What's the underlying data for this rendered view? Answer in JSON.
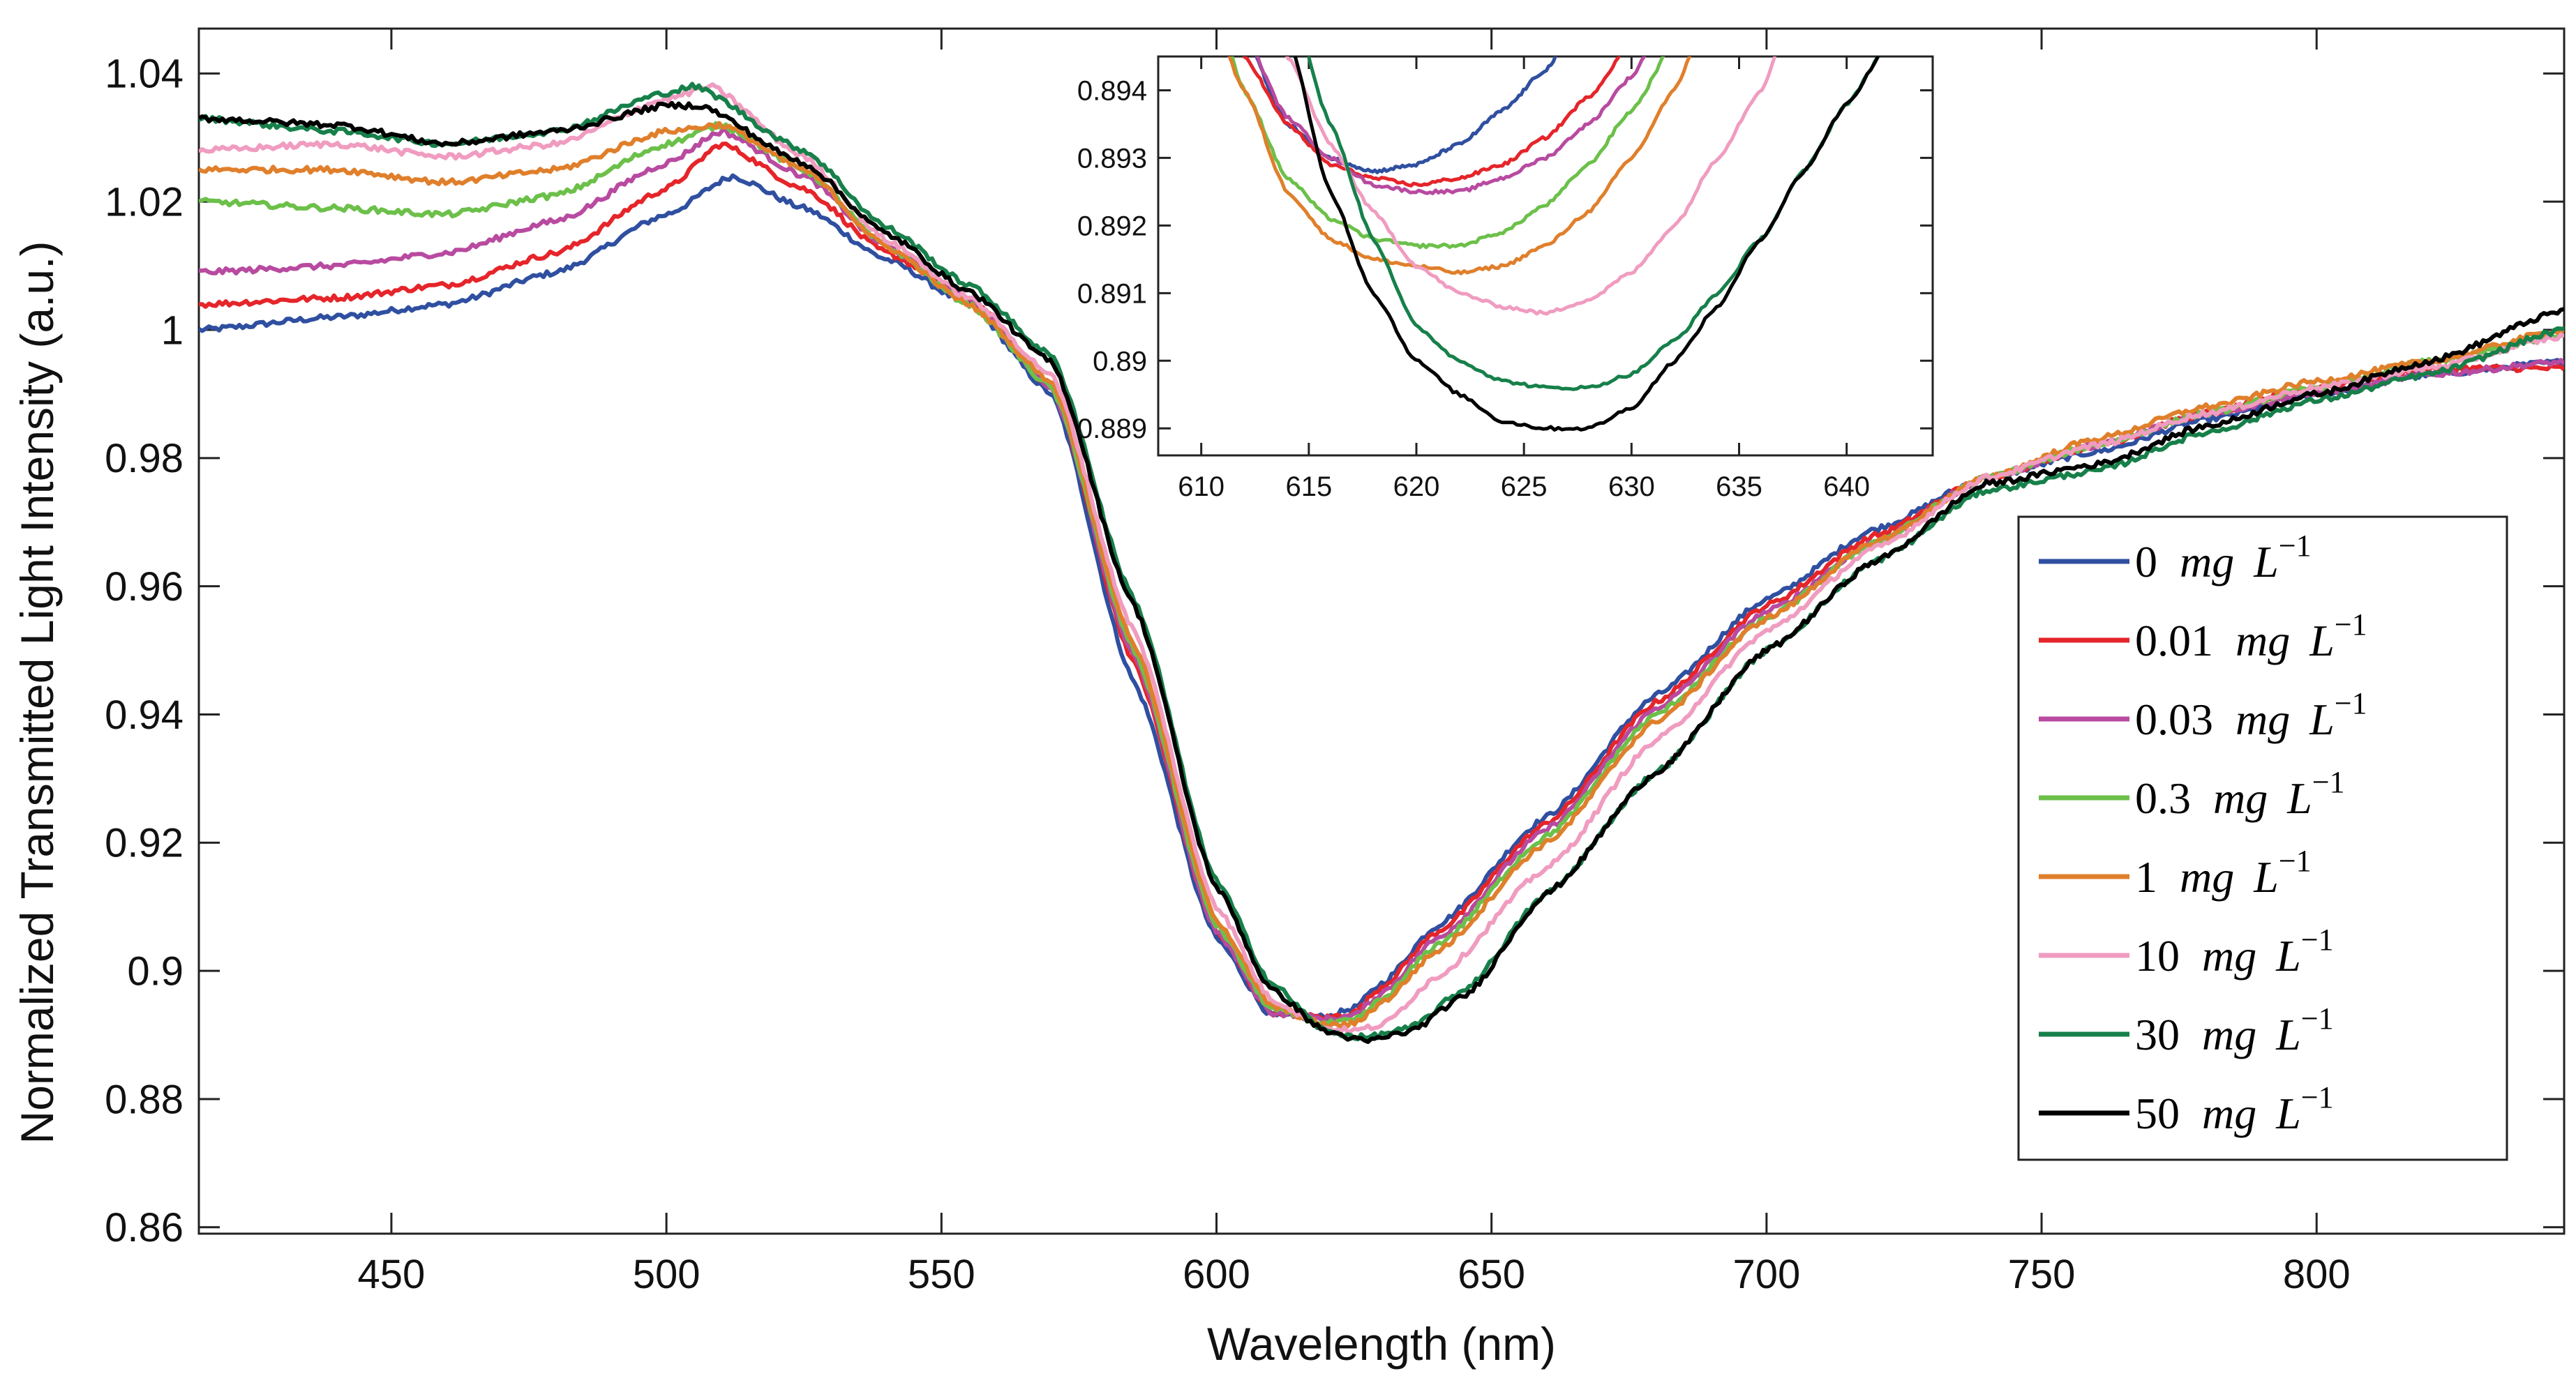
{
  "chart_data": {
    "type": "line",
    "xlabel": "Wavelength (nm)",
    "ylabel": "Normalized Transmitted Light Intensity (a.u.)",
    "xlim": [
      415,
      845
    ],
    "ylim": [
      0.859,
      1.047
    ],
    "xticks": [
      450,
      500,
      550,
      600,
      650,
      700,
      750,
      800
    ],
    "yticks": [
      0.86,
      0.88,
      0.9,
      0.92,
      0.94,
      0.96,
      0.98,
      1.0,
      1.02,
      1.04
    ],
    "ytick_labels": [
      "0.86",
      "0.88",
      "0.9",
      "0.92",
      "0.94",
      "0.96",
      "0.98",
      "1",
      "1.02",
      "1.04"
    ],
    "xtick_labels": [
      "450",
      "500",
      "550",
      "600",
      "650",
      "700",
      "750",
      "800"
    ],
    "grid": false,
    "legend_position": "right-center",
    "series": [
      {
        "name": "0",
        "unit": "mg",
        "exponent_label": "L",
        "exponent": "−1",
        "color": "#2f4fa0",
        "x": [
          415,
          440,
          460,
          480,
          500,
          512,
          525,
          540,
          555,
          570,
          585,
          600,
          610,
          620,
          625,
          630,
          640,
          660,
          680,
          700,
          720,
          740,
          760,
          780,
          800,
          820,
          845
        ],
        "y": [
          1.0,
          1.002,
          1.004,
          1.009,
          1.018,
          1.024,
          1.019,
          1.011,
          1.004,
          0.99,
          0.945,
          0.905,
          0.893,
          0.8928,
          0.8942,
          0.898,
          0.907,
          0.924,
          0.943,
          0.958,
          0.969,
          0.977,
          0.981,
          0.986,
          0.99,
          0.993,
          0.995
        ]
      },
      {
        "name": "0.01",
        "unit": "mg",
        "exponent_label": "L",
        "exponent": "−1",
        "color": "#e5252a",
        "x": [
          415,
          440,
          460,
          480,
          500,
          510,
          525,
          540,
          555,
          570,
          585,
          600,
          610,
          620,
          625,
          630,
          640,
          660,
          680,
          700,
          720,
          740,
          760,
          780,
          800,
          820,
          845
        ],
        "y": [
          1.004,
          1.005,
          1.007,
          1.012,
          1.022,
          1.029,
          1.022,
          1.012,
          1.005,
          0.991,
          0.948,
          0.906,
          0.8935,
          0.8927,
          0.8935,
          0.8975,
          0.906,
          0.923,
          0.942,
          0.957,
          0.968,
          0.977,
          0.982,
          0.987,
          0.991,
          0.994,
          0.994
        ]
      },
      {
        "name": "0.03",
        "unit": "mg",
        "exponent_label": "L",
        "exponent": "−1",
        "color": "#b84aa0",
        "x": [
          415,
          440,
          460,
          480,
          500,
          510,
          525,
          540,
          555,
          570,
          585,
          600,
          610,
          620,
          625,
          630,
          640,
          660,
          680,
          700,
          720,
          740,
          760,
          780,
          800,
          820,
          845
        ],
        "y": [
          1.009,
          1.01,
          1.012,
          1.017,
          1.026,
          1.031,
          1.024,
          1.013,
          1.005,
          0.991,
          0.949,
          0.906,
          0.8935,
          0.8925,
          0.893,
          0.8965,
          0.905,
          0.922,
          0.941,
          0.956,
          0.967,
          0.977,
          0.982,
          0.987,
          0.99,
          0.993,
          0.995
        ]
      },
      {
        "name": "0.3",
        "unit": "mg",
        "exponent_label": "L",
        "exponent": "−1",
        "color": "#6cc04a",
        "x": [
          415,
          440,
          460,
          480,
          500,
          510,
          525,
          540,
          555,
          570,
          585,
          600,
          610,
          620,
          625,
          630,
          640,
          660,
          680,
          700,
          720,
          740,
          760,
          780,
          800,
          820,
          845
        ],
        "y": [
          1.02,
          1.019,
          1.018,
          1.021,
          1.029,
          1.032,
          1.025,
          1.013,
          1.004,
          0.991,
          0.95,
          0.907,
          0.894,
          0.8918,
          0.8922,
          0.8955,
          0.904,
          0.921,
          0.94,
          0.955,
          0.967,
          0.977,
          0.982,
          0.987,
          0.991,
          0.995,
          0.999
        ]
      },
      {
        "name": "1",
        "unit": "mg",
        "exponent_label": "L",
        "exponent": "−1",
        "color": "#e07f2b",
        "x": [
          415,
          440,
          460,
          480,
          500,
          510,
          525,
          540,
          555,
          570,
          585,
          600,
          610,
          620,
          625,
          630,
          640,
          660,
          680,
          700,
          720,
          740,
          760,
          780,
          800,
          820,
          845
        ],
        "y": [
          1.025,
          1.025,
          1.023,
          1.025,
          1.031,
          1.032,
          1.025,
          1.013,
          1.004,
          0.992,
          0.951,
          0.908,
          0.8945,
          0.8915,
          0.8917,
          0.895,
          0.903,
          0.92,
          0.939,
          0.955,
          0.967,
          0.977,
          0.983,
          0.988,
          0.992,
          0.995,
          1.0
        ]
      },
      {
        "name": "10",
        "unit": "mg",
        "exponent_label": "L",
        "exponent": "−1",
        "color": "#f09cc0",
        "x": [
          415,
          440,
          460,
          480,
          500,
          508,
          525,
          540,
          555,
          570,
          585,
          600,
          610,
          620,
          625,
          630,
          640,
          660,
          680,
          700,
          720,
          740,
          760,
          780,
          800,
          820,
          845
        ],
        "y": [
          1.028,
          1.029,
          1.027,
          1.029,
          1.036,
          1.038,
          1.027,
          1.014,
          1.005,
          0.993,
          0.953,
          0.91,
          0.8955,
          0.891,
          0.8907,
          0.8915,
          0.899,
          0.916,
          0.936,
          0.953,
          0.966,
          0.977,
          0.982,
          0.987,
          0.991,
          0.994,
          0.999
        ]
      },
      {
        "name": "30",
        "unit": "mg",
        "exponent_label": "L",
        "exponent": "−1",
        "color": "#17804a",
        "x": [
          415,
          440,
          460,
          480,
          500,
          505,
          525,
          540,
          555,
          570,
          585,
          600,
          610,
          620,
          627,
          635,
          645,
          660,
          680,
          700,
          720,
          740,
          760,
          780,
          800,
          820,
          845
        ],
        "y": [
          1.033,
          1.031,
          1.029,
          1.031,
          1.037,
          1.038,
          1.028,
          1.016,
          1.007,
          0.996,
          0.958,
          0.914,
          0.898,
          0.8905,
          0.8896,
          0.891,
          0.897,
          0.912,
          0.931,
          0.95,
          0.964,
          0.975,
          0.978,
          0.984,
          0.989,
          0.993,
          1.0
        ]
      },
      {
        "name": "50",
        "unit": "mg",
        "exponent_label": "L",
        "exponent": "−1",
        "color": "#000000",
        "x": [
          415,
          440,
          460,
          480,
          500,
          506,
          525,
          540,
          555,
          570,
          585,
          600,
          610,
          620,
          627,
          635,
          645,
          660,
          680,
          700,
          720,
          740,
          760,
          780,
          800,
          820,
          845
        ],
        "y": [
          1.033,
          1.032,
          1.029,
          1.031,
          1.035,
          1.035,
          1.026,
          1.015,
          1.006,
          0.995,
          0.957,
          0.913,
          0.897,
          0.8905,
          0.889,
          0.8905,
          0.896,
          0.912,
          0.931,
          0.95,
          0.964,
          0.976,
          0.979,
          0.985,
          0.99,
          0.995,
          1.003
        ]
      }
    ],
    "inset": {
      "xlim": [
        608,
        644
      ],
      "ylim": [
        0.8886,
        0.8945
      ],
      "xticks": [
        610,
        615,
        620,
        625,
        630,
        635,
        640
      ],
      "xtick_labels": [
        "610",
        "615",
        "620",
        "625",
        "630",
        "635",
        "640"
      ],
      "yticks": [
        0.889,
        0.89,
        0.891,
        0.892,
        0.893,
        0.894
      ],
      "ytick_labels": [
        "0.889",
        "0.89",
        "0.891",
        "0.892",
        "0.893",
        "0.894"
      ],
      "series": [
        {
          "name": "0",
          "color": "#2f4fa0",
          "x": [
            610,
            612,
            614,
            616,
            618,
            620,
            622,
            624,
            626,
            627
          ],
          "y": [
            0.8966,
            0.8948,
            0.8935,
            0.893,
            0.8928,
            0.8929,
            0.8932,
            0.8937,
            0.8943,
            0.8947
          ]
        },
        {
          "name": "0.01",
          "color": "#e5252a",
          "x": [
            610,
            612,
            614,
            616,
            618,
            620,
            622,
            624,
            626,
            628,
            630
          ],
          "y": [
            0.8966,
            0.8945,
            0.8935,
            0.8929,
            0.8927,
            0.8926,
            0.8927,
            0.8929,
            0.8933,
            0.8939,
            0.8947
          ]
        },
        {
          "name": "0.03",
          "color": "#b84aa0",
          "x": [
            610,
            612,
            614,
            616,
            618,
            620,
            622,
            624,
            626,
            628,
            630,
            631
          ],
          "y": [
            0.8965,
            0.8948,
            0.8936,
            0.893,
            0.8926,
            0.8925,
            0.8925,
            0.8927,
            0.893,
            0.8935,
            0.8942,
            0.8947
          ]
        },
        {
          "name": "0.3",
          "color": "#6cc04a",
          "x": [
            610,
            612,
            614,
            616,
            618,
            620,
            622,
            624,
            626,
            628,
            630,
            632
          ],
          "y": [
            0.896,
            0.894,
            0.8927,
            0.8921,
            0.8918,
            0.8917,
            0.8917,
            0.8919,
            0.8923,
            0.8929,
            0.8937,
            0.8947
          ]
        },
        {
          "name": "1",
          "color": "#e07f2b",
          "x": [
            610,
            612,
            614,
            616,
            618,
            620,
            622,
            624,
            626,
            628,
            630,
            632,
            633
          ],
          "y": [
            0.8956,
            0.894,
            0.8925,
            0.8918,
            0.8915,
            0.8914,
            0.8913,
            0.8914,
            0.8917,
            0.8922,
            0.893,
            0.894,
            0.8947
          ]
        },
        {
          "name": "10",
          "color": "#f09cc0",
          "x": [
            612,
            614,
            616,
            618,
            620,
            622,
            624,
            626,
            628,
            630,
            632,
            634,
            636,
            637
          ],
          "y": [
            0.8962,
            0.8945,
            0.8932,
            0.8922,
            0.8914,
            0.891,
            0.8908,
            0.8907,
            0.8909,
            0.8913,
            0.892,
            0.893,
            0.894,
            0.8947
          ]
        },
        {
          "name": "30",
          "color": "#17804a",
          "x": [
            614,
            616,
            618,
            620,
            622,
            624,
            626,
            628,
            630,
            632,
            634,
            636,
            638,
            640,
            642
          ],
          "y": [
            0.8955,
            0.8935,
            0.8918,
            0.8905,
            0.89,
            0.8897,
            0.8896,
            0.8896,
            0.8898,
            0.8903,
            0.891,
            0.8918,
            0.8928,
            0.8938,
            0.8947
          ]
        },
        {
          "name": "50",
          "color": "#000000",
          "x": [
            614,
            616,
            618,
            620,
            622,
            624,
            626,
            628,
            630,
            632,
            634,
            636,
            638,
            640,
            642
          ],
          "y": [
            0.8948,
            0.8925,
            0.891,
            0.89,
            0.8895,
            0.8891,
            0.889,
            0.889,
            0.8893,
            0.89,
            0.8908,
            0.8918,
            0.8928,
            0.8938,
            0.8947
          ]
        }
      ]
    }
  }
}
